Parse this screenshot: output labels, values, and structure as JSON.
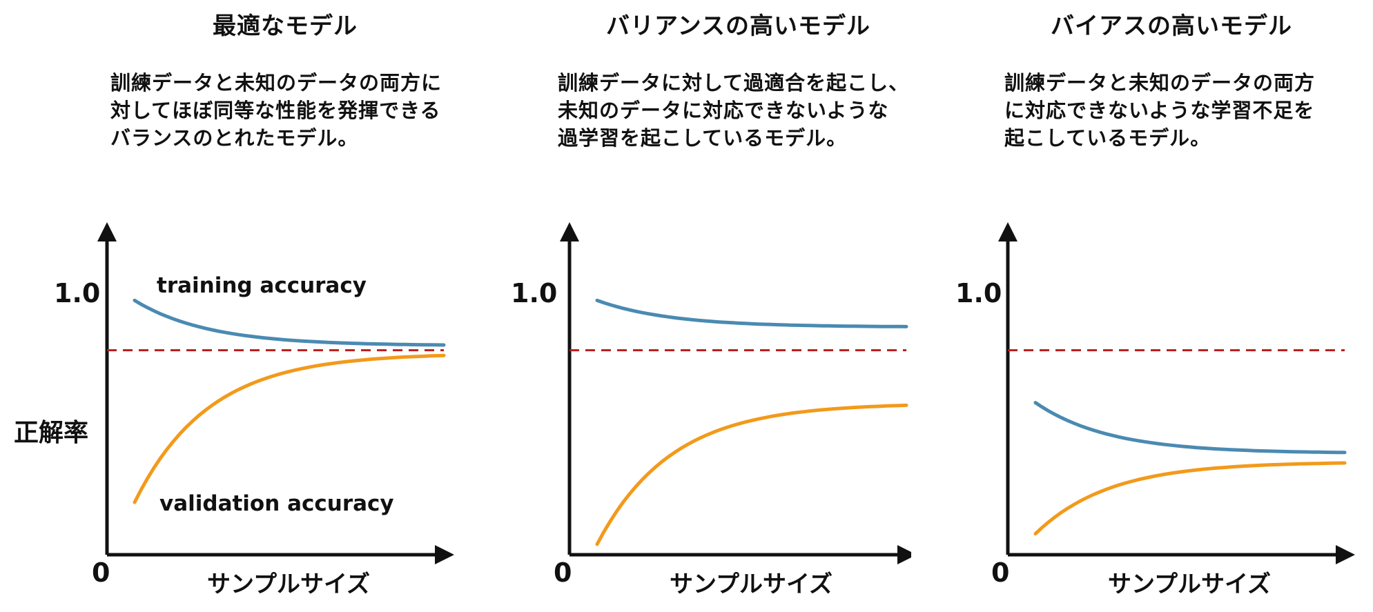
{
  "colors": {
    "training": "#4a8ab2",
    "validation": "#f29a1b",
    "baseline": "#b81c1c",
    "axis": "#111111"
  },
  "y_axis_label": "正解率",
  "panels": [
    {
      "id": "optimal",
      "title": "最適なモデル",
      "description": "訓練データと未知のデータの両方に\n対してほぼ同等な性能を発揮できる\nバランスのとれたモデル。",
      "y_tick_top": "1.0",
      "origin_label": "0",
      "x_axis_label": "サンプルサイズ",
      "training_label": "training accuracy",
      "validation_label": "validation accuracy",
      "desired_accuracy": 0.78,
      "training_curve": {
        "start": 0.97,
        "end": 0.8
      },
      "validation_curve": {
        "start": 0.2,
        "end": 0.76
      }
    },
    {
      "id": "high-variance",
      "title": "バリアンスの高いモデル",
      "description": "訓練データに対して過適合を起こし、\n未知のデータに対応できないような\n過学習を起こしているモデル。",
      "y_tick_top": "1.0",
      "origin_label": "0",
      "x_axis_label": "サンプルサイズ",
      "desired_accuracy": 0.78,
      "training_curve": {
        "start": 0.97,
        "end": 0.87
      },
      "validation_curve": {
        "start": 0.04,
        "end": 0.57
      }
    },
    {
      "id": "high-bias",
      "title": "バイアスの高いモデル",
      "description": "訓練データと未知のデータの両方\nに対応できないような学習不足を\n起こしているモデル。",
      "y_tick_top": "1.0",
      "origin_label": "0",
      "x_axis_label": "サンプルサイズ",
      "desired_accuracy": 0.78,
      "training_curve": {
        "start": 0.58,
        "end": 0.39
      },
      "validation_curve": {
        "start": 0.08,
        "end": 0.35
      }
    }
  ]
}
